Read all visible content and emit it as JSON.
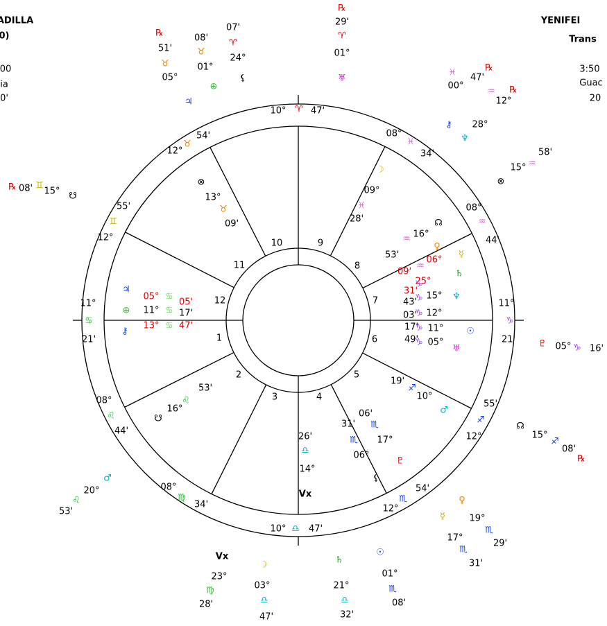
{
  "header_left": [
    "ADILLA",
    "0)",
    "00",
    "ia",
    "0'"
  ],
  "header_right": [
    "YENIFEI",
    "Trans",
    "3:50",
    "Guac",
    "20"
  ],
  "houses": [
    "1",
    "2",
    "3",
    "4",
    "5",
    "6",
    "7",
    "8",
    "9",
    "10",
    "11",
    "12"
  ],
  "cusp_labels": [
    "10°",
    "♈",
    "47'",
    "12°",
    "♉",
    "54'",
    "12°",
    "♊",
    "55'",
    "11°",
    "♋",
    "21'",
    "08°",
    "♌",
    "44'",
    "08°",
    "♍",
    "34'",
    "10°",
    "♎",
    "47'",
    "12°",
    "♏",
    "54'",
    "12°",
    "♐",
    "55'",
    "11°",
    "♑",
    "21'",
    "08°",
    "♒",
    "44'",
    "08°",
    "♓",
    "34'"
  ],
  "planet_labels": [
    "♃",
    "⊕",
    "⚷",
    "05°",
    "11°",
    "13°",
    "♋",
    "♋",
    "♋",
    "05'",
    "17'",
    "47'",
    "⊗",
    "13°",
    "♉",
    "09'",
    "℞",
    "08'",
    "♊",
    "15°",
    "☋",
    "☋",
    "16°",
    "♌",
    "53'",
    "℞",
    "51'",
    "♉",
    "05°",
    "♃",
    "08'",
    "♉",
    "01°",
    "⊕",
    "07'",
    "♈",
    "24°",
    "⚸",
    "℞",
    "29'",
    "♈",
    "01°",
    "♅",
    "47'",
    "℞",
    "♓",
    "00°",
    "12°",
    "℞",
    "♒",
    "28°",
    "⚷",
    "♆",
    "⊗",
    "15°",
    "♒",
    "58'",
    "☊",
    "16°",
    "♒",
    "53'",
    "♀",
    "06°",
    "♒",
    "09'",
    "☿",
    "25°",
    "♄",
    "31'",
    "♑",
    "♑",
    "♑",
    "♑",
    "♑",
    "15°",
    "12°",
    "11°",
    "05°",
    "43'",
    "03'",
    "17'",
    "49'",
    "♆",
    "☉",
    "♅",
    "♇",
    "05°",
    "♑",
    "16'",
    "☊",
    "15°",
    "♐",
    "08'",
    "℞",
    "19'",
    "♐",
    "10°",
    "♂",
    "06'",
    "31'",
    "♏",
    "17°",
    "♏",
    "06°",
    "♇",
    "⚸",
    "26'",
    "♎",
    "14°",
    "Vx",
    "♀",
    "☿",
    "19°",
    "♏",
    "29'",
    "17°",
    "♏",
    "31'",
    "☉",
    "01°",
    "♏",
    "08'",
    "♄",
    "21°",
    "♎",
    "32'",
    "Vx",
    "23°",
    "♍",
    "28'",
    "☽",
    "03°",
    "♎",
    "47'",
    "♂",
    "20°",
    "♌",
    "53'",
    "☽",
    "09°",
    "♓",
    "28'"
  ]
}
